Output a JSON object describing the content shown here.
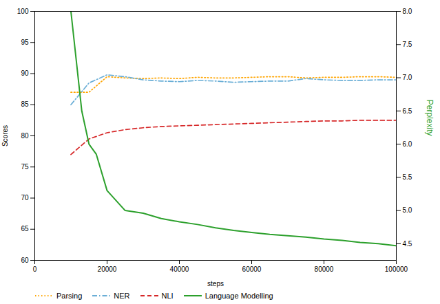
{
  "chart_data": {
    "type": "line",
    "xlabel": "steps",
    "ylabel": "Scores",
    "y2label": "Perplexity",
    "xlim": [
      0,
      100000
    ],
    "xticks": [
      0,
      20000,
      40000,
      60000,
      80000,
      100000
    ],
    "ylim": [
      60,
      100
    ],
    "yticks": [
      60,
      65,
      70,
      75,
      80,
      85,
      90,
      95,
      100
    ],
    "y2lim": [
      4.25,
      8.0
    ],
    "y2ticks": [
      4.5,
      {
        "value": 5.0,
        "label": "5.0"
      },
      5.5,
      {
        "value": 6.0,
        "label": "6.0"
      },
      6.5,
      {
        "value": 7.0,
        "label": "7.0"
      },
      7.5,
      {
        "value": 8.0,
        "label": "8.0"
      }
    ],
    "grid": false,
    "legend": "lower left",
    "series": [
      {
        "name": "Parsing",
        "color": "#FFA500",
        "line_style": "dotted",
        "x": [
          10000,
          15000,
          20000,
          25000,
          30000,
          35000,
          40000,
          45000,
          50000,
          55000,
          60000,
          65000,
          70000,
          75000,
          80000,
          85000,
          90000,
          95000,
          100000
        ],
        "values": [
          87.0,
          87.0,
          89.5,
          89.3,
          89.2,
          89.3,
          89.2,
          89.4,
          89.3,
          89.3,
          89.4,
          89.5,
          89.5,
          89.3,
          89.4,
          89.4,
          89.5,
          89.5,
          89.4
        ]
      },
      {
        "name": "NER",
        "color": "#6aaed6",
        "line_style": "dashdot",
        "x": [
          10000,
          15000,
          20000,
          25000,
          30000,
          35000,
          40000,
          45000,
          50000,
          55000,
          60000,
          65000,
          70000,
          75000,
          80000,
          85000,
          90000,
          95000,
          100000
        ],
        "values": [
          85.0,
          88.5,
          89.8,
          89.5,
          89.0,
          88.8,
          88.7,
          88.9,
          88.8,
          88.6,
          88.7,
          88.8,
          88.8,
          89.2,
          89.0,
          88.9,
          88.9,
          89.0,
          89.0
        ]
      },
      {
        "name": "NLI",
        "color": "#d62728",
        "line_style": "dashed",
        "x": [
          10000,
          15000,
          20000,
          25000,
          30000,
          35000,
          40000,
          45000,
          50000,
          55000,
          60000,
          65000,
          70000,
          75000,
          80000,
          85000,
          90000,
          95000,
          100000
        ],
        "values": [
          77.0,
          79.5,
          80.5,
          81.0,
          81.3,
          81.5,
          81.6,
          81.7,
          81.8,
          81.9,
          82.0,
          82.1,
          82.2,
          82.3,
          82.4,
          82.4,
          82.5,
          82.5,
          82.5
        ]
      },
      {
        "name": "Language Modelling",
        "color": "#2ca02c",
        "line_style": "solid",
        "axis": "y2",
        "x": [
          10000,
          13000,
          15000,
          17000,
          20000,
          25000,
          30000,
          35000,
          40000,
          45000,
          50000,
          55000,
          60000,
          65000,
          70000,
          75000,
          80000,
          85000,
          90000,
          95000,
          100000
        ],
        "values": [
          8.0,
          6.5,
          6.0,
          5.85,
          5.3,
          5.0,
          4.96,
          4.88,
          4.83,
          4.79,
          4.74,
          4.7,
          4.67,
          4.64,
          4.62,
          4.6,
          4.57,
          4.55,
          4.52,
          4.5,
          4.47
        ]
      }
    ]
  }
}
